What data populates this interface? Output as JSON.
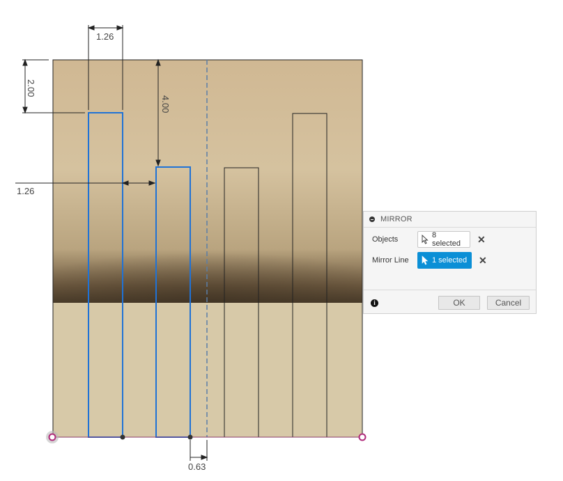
{
  "sketch": {
    "dimensions": {
      "top_width": "1.26",
      "left_height": "2.00",
      "inner_height": "4.00",
      "horizontal_gap": "1.26",
      "bottom_offset": "0.63"
    },
    "colors": {
      "background_top": "#d2bd98",
      "background_bottom": "#d6c8a7",
      "selected_profile": "#1f72d6",
      "profile_line": "#222222",
      "mirror_line": "#5a7ea8",
      "origin_point": "#b02a7a"
    }
  },
  "dialog": {
    "title": "MIRROR",
    "objects_label": "Objects",
    "objects_value": "8 selected",
    "mirror_line_label": "Mirror Line",
    "mirror_line_value": "1 selected",
    "ok_label": "OK",
    "cancel_label": "Cancel",
    "info_icon": "i",
    "clear_icon": "✕",
    "accent": "#0b8fd6"
  }
}
